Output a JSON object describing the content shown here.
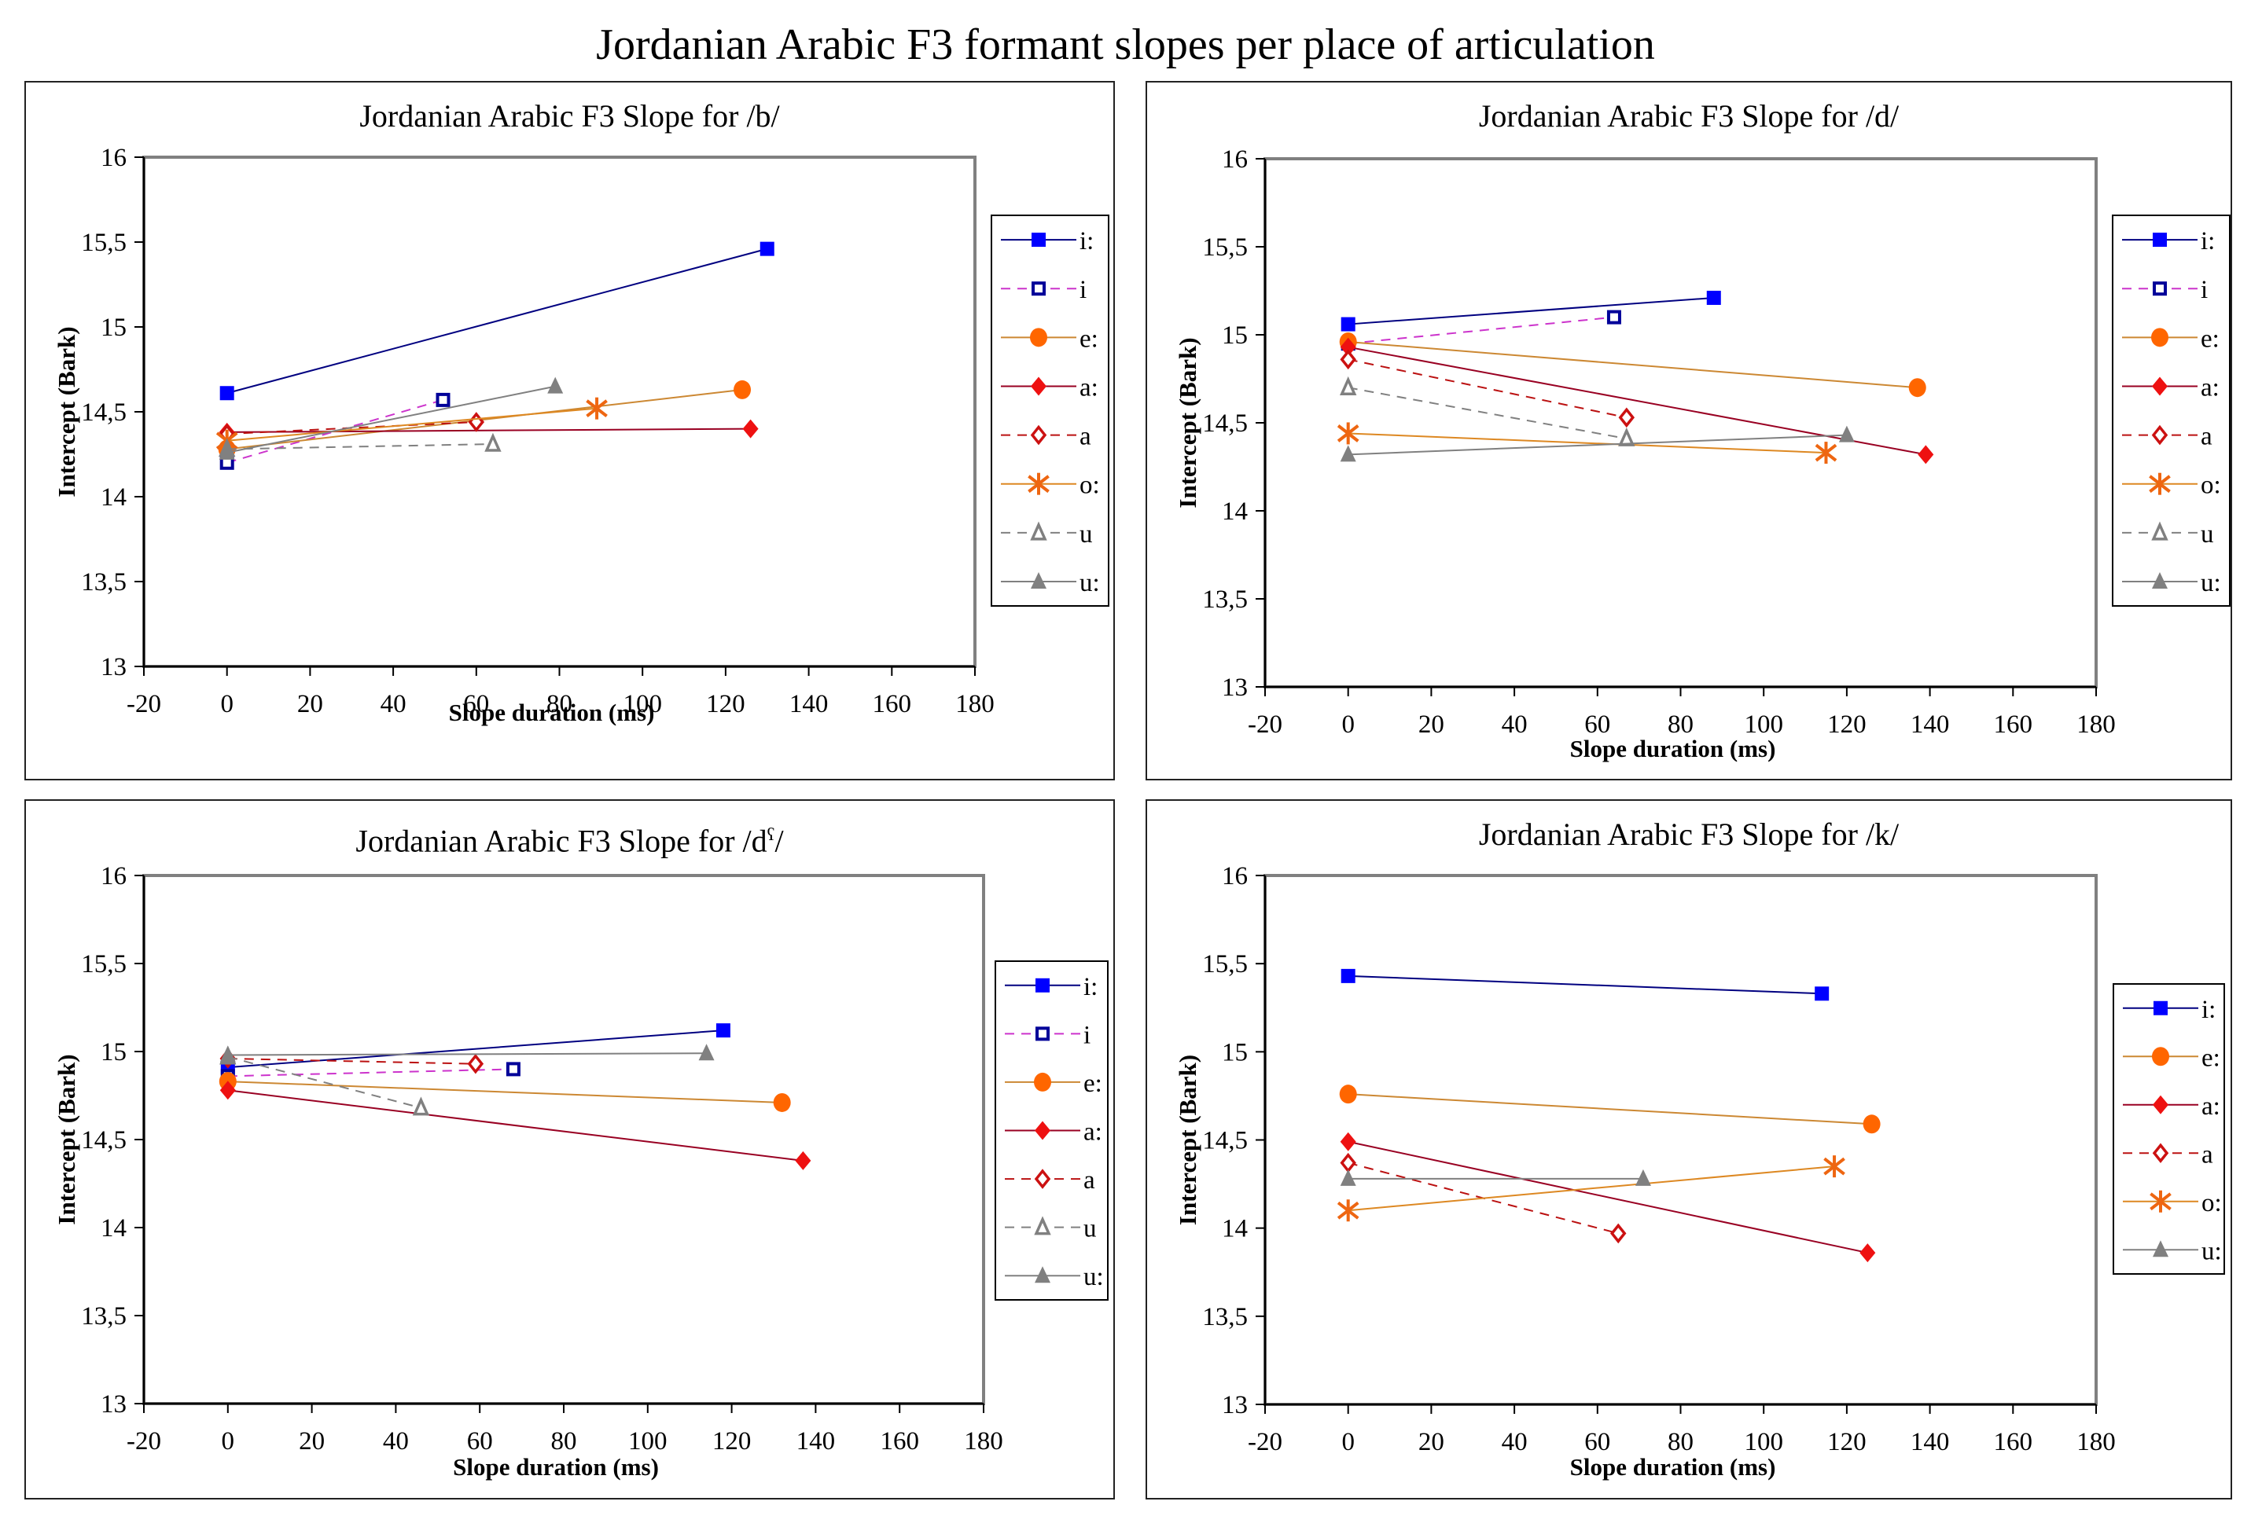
{
  "figure_title": "Jordanian Arabic F3  formant slopes per place of articulation",
  "series_styles": {
    "i:": {
      "color": "#0000ff",
      "line": "#000080",
      "dash": false,
      "marker": "square-filled"
    },
    "i": {
      "color": "#000099",
      "line": "#cc33cc",
      "dash": true,
      "marker": "square-open"
    },
    "e:": {
      "color": "#ff6600",
      "line": "#cc8833",
      "dash": false,
      "marker": "circle-filled"
    },
    "a:": {
      "color": "#ee1111",
      "line": "#990022",
      "dash": false,
      "marker": "diamond-filled"
    },
    "a": {
      "color": "#cc1111",
      "line": "#bb1111",
      "dash": true,
      "marker": "diamond-open"
    },
    "o:": {
      "color": "#ee6611",
      "line": "#dd8822",
      "dash": false,
      "marker": "asterisk"
    },
    "u": {
      "color": "#808080",
      "line": "#808080",
      "dash": true,
      "marker": "triangle-open"
    },
    "u:": {
      "color": "#808080",
      "line": "#808080",
      "dash": false,
      "marker": "triangle-filled"
    }
  },
  "chart_data": [
    {
      "type": "line",
      "title": "Jordanian Arabic F3 Slope for /b/",
      "title_main": "Jordanian Arabic F3 Slope for /b/",
      "xlabel": "Slope duration (ms)",
      "ylabel": "Intercept (Bark)",
      "xlim": [
        -20,
        180
      ],
      "ylim": [
        13,
        16
      ],
      "xticks": [
        "-20",
        "0",
        "20",
        "40",
        "60",
        "80",
        "100",
        "120",
        "140",
        "160",
        "180"
      ],
      "yticks": [
        "13",
        "13,5",
        "14",
        "14,5",
        "15",
        "15,5",
        "16"
      ],
      "legend_position": "right",
      "grid": false,
      "series": [
        {
          "name": "i:",
          "x": [
            0,
            130
          ],
          "y": [
            14.61,
            15.46
          ]
        },
        {
          "name": "i",
          "x": [
            0,
            52
          ],
          "y": [
            14.2,
            14.57
          ]
        },
        {
          "name": "e:",
          "x": [
            0,
            124
          ],
          "y": [
            14.28,
            14.63
          ]
        },
        {
          "name": "a:",
          "x": [
            0,
            126
          ],
          "y": [
            14.38,
            14.4
          ]
        },
        {
          "name": "a",
          "x": [
            0,
            60
          ],
          "y": [
            14.37,
            14.44
          ]
        },
        {
          "name": "o:",
          "x": [
            0,
            89
          ],
          "y": [
            14.33,
            14.52
          ]
        },
        {
          "name": "u",
          "x": [
            0,
            64
          ],
          "y": [
            14.28,
            14.31
          ]
        },
        {
          "name": "u:",
          "x": [
            0,
            79
          ],
          "y": [
            14.26,
            14.65
          ]
        }
      ]
    },
    {
      "type": "line",
      "title": "Jordanian Arabic F3 Slope for /d/",
      "title_main": "Jordanian Arabic F3 Slope for /d/",
      "xlabel": "Slope duration (ms)",
      "ylabel": "Intercept (Bark)",
      "xlim": [
        -20,
        180
      ],
      "ylim": [
        13,
        16
      ],
      "xticks": [
        "-20",
        "0",
        "20",
        "40",
        "60",
        "80",
        "100",
        "120",
        "140",
        "160",
        "180"
      ],
      "yticks": [
        "13",
        "13,5",
        "14",
        "14,5",
        "15",
        "15,5",
        "16"
      ],
      "legend_position": "right",
      "grid": false,
      "series": [
        {
          "name": "i:",
          "x": [
            0,
            88
          ],
          "y": [
            15.06,
            15.21
          ]
        },
        {
          "name": "i",
          "x": [
            0,
            64
          ],
          "y": [
            14.95,
            15.1
          ]
        },
        {
          "name": "e:",
          "x": [
            0,
            137
          ],
          "y": [
            14.96,
            14.7
          ]
        },
        {
          "name": "a:",
          "x": [
            0,
            139
          ],
          "y": [
            14.93,
            14.32
          ]
        },
        {
          "name": "a",
          "x": [
            0,
            67
          ],
          "y": [
            14.86,
            14.53
          ]
        },
        {
          "name": "o:",
          "x": [
            0,
            115
          ],
          "y": [
            14.44,
            14.33
          ]
        },
        {
          "name": "u",
          "x": [
            0,
            67
          ],
          "y": [
            14.7,
            14.41
          ]
        },
        {
          "name": "u:",
          "x": [
            0,
            120
          ],
          "y": [
            14.32,
            14.43
          ]
        }
      ]
    },
    {
      "type": "line",
      "title": "Jordanian Arabic F3 Slope for /dˤ/",
      "title_main": "Jordanian Arabic F3 Slope for /d",
      "title_sup": "ʕ",
      "title_end": "/",
      "xlabel": "Slope duration (ms)",
      "ylabel": "Intercept (Bark)",
      "xlim": [
        -20,
        180
      ],
      "ylim": [
        13,
        16
      ],
      "xticks": [
        "-20",
        "0",
        "20",
        "40",
        "60",
        "80",
        "100",
        "120",
        "140",
        "160",
        "180"
      ],
      "yticks": [
        "13",
        "13,5",
        "14",
        "14,5",
        "15",
        "15,5",
        "16"
      ],
      "legend_position": "right",
      "grid": false,
      "series": [
        {
          "name": "i:",
          "x": [
            0,
            118
          ],
          "y": [
            14.91,
            15.12
          ]
        },
        {
          "name": "i",
          "x": [
            0,
            68
          ],
          "y": [
            14.86,
            14.9
          ]
        },
        {
          "name": "e:",
          "x": [
            0,
            132
          ],
          "y": [
            14.83,
            14.71
          ]
        },
        {
          "name": "a:",
          "x": [
            0,
            137
          ],
          "y": [
            14.78,
            14.38
          ]
        },
        {
          "name": "a",
          "x": [
            0,
            59
          ],
          "y": [
            14.96,
            14.93
          ]
        },
        {
          "name": "u",
          "x": [
            0,
            46
          ],
          "y": [
            14.97,
            14.68
          ]
        },
        {
          "name": "u:",
          "x": [
            0,
            114
          ],
          "y": [
            14.98,
            14.99
          ]
        }
      ]
    },
    {
      "type": "line",
      "title": "Jordanian Arabic F3 Slope for /k/",
      "title_main": "Jordanian Arabic F3 Slope for /k/",
      "xlabel": "Slope duration (ms)",
      "ylabel": "Intercept (Bark)",
      "xlim": [
        -20,
        180
      ],
      "ylim": [
        13,
        16
      ],
      "xticks": [
        "-20",
        "0",
        "20",
        "40",
        "60",
        "80",
        "100",
        "120",
        "140",
        "160",
        "180"
      ],
      "yticks": [
        "13",
        "13,5",
        "14",
        "14,5",
        "15",
        "15,5",
        "16"
      ],
      "legend_position": "right",
      "grid": false,
      "series": [
        {
          "name": "i:",
          "x": [
            0,
            114
          ],
          "y": [
            15.43,
            15.33
          ]
        },
        {
          "name": "e:",
          "x": [
            0,
            126
          ],
          "y": [
            14.76,
            14.59
          ]
        },
        {
          "name": "a:",
          "x": [
            0,
            125
          ],
          "y": [
            14.49,
            13.86
          ]
        },
        {
          "name": "a",
          "x": [
            0,
            65
          ],
          "y": [
            14.37,
            13.97
          ]
        },
        {
          "name": "o:",
          "x": [
            0,
            117
          ],
          "y": [
            14.1,
            14.35
          ]
        },
        {
          "name": "u:",
          "x": [
            0,
            71
          ],
          "y": [
            14.28,
            14.28
          ]
        }
      ]
    }
  ]
}
